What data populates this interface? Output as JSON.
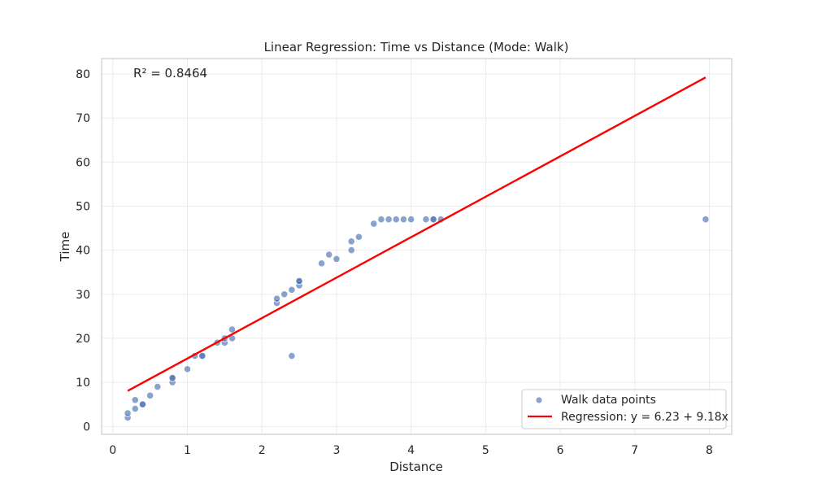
{
  "chart_data": {
    "type": "scatter",
    "title": "Linear Regression: Time vs Distance (Mode: Walk)",
    "xlabel": "Distance",
    "ylabel": "Time",
    "xlim": [
      -0.15,
      8.3
    ],
    "ylim": [
      -1.8,
      83.5
    ],
    "xticks": [
      0,
      1,
      2,
      3,
      4,
      5,
      6,
      7,
      8
    ],
    "yticks": [
      0,
      10,
      20,
      30,
      40,
      50,
      60,
      70,
      80
    ],
    "grid": true,
    "legend_position": "lower-right",
    "annotation": "R² = 0.8464",
    "colors": {
      "points": "#4c72b0",
      "regression": "#ff0000",
      "grid": "#ebebeb",
      "frame": "#cccccc"
    },
    "series": [
      {
        "name": "Walk data points",
        "kind": "scatter",
        "points": [
          [
            0.2,
            2
          ],
          [
            0.2,
            3
          ],
          [
            0.3,
            4
          ],
          [
            0.3,
            6
          ],
          [
            0.4,
            5
          ],
          [
            0.4,
            5
          ],
          [
            0.5,
            7
          ],
          [
            0.6,
            9
          ],
          [
            0.8,
            10
          ],
          [
            0.8,
            11
          ],
          [
            0.8,
            11
          ],
          [
            1.0,
            13
          ],
          [
            1.1,
            16
          ],
          [
            1.2,
            16
          ],
          [
            1.2,
            16
          ],
          [
            1.4,
            19
          ],
          [
            1.5,
            19
          ],
          [
            1.5,
            20
          ],
          [
            1.6,
            20
          ],
          [
            1.6,
            22
          ],
          [
            2.2,
            28
          ],
          [
            2.2,
            29
          ],
          [
            2.3,
            30
          ],
          [
            2.4,
            31
          ],
          [
            2.4,
            16
          ],
          [
            2.5,
            32
          ],
          [
            2.5,
            33
          ],
          [
            2.5,
            33
          ],
          [
            2.8,
            37
          ],
          [
            2.9,
            39
          ],
          [
            3.0,
            38
          ],
          [
            3.2,
            40
          ],
          [
            3.2,
            42
          ],
          [
            3.3,
            43
          ],
          [
            3.5,
            46
          ],
          [
            3.6,
            47
          ],
          [
            3.7,
            47
          ],
          [
            3.8,
            47
          ],
          [
            3.9,
            47
          ],
          [
            4.0,
            47
          ],
          [
            4.2,
            47
          ],
          [
            4.3,
            47
          ],
          [
            4.3,
            47
          ],
          [
            4.4,
            47
          ],
          [
            7.95,
            47
          ]
        ]
      },
      {
        "name": "Regression: y = 6.23 + 9.18x",
        "kind": "line",
        "intercept": 6.23,
        "slope": 9.18,
        "x_range": [
          0.2,
          7.95
        ]
      }
    ]
  }
}
